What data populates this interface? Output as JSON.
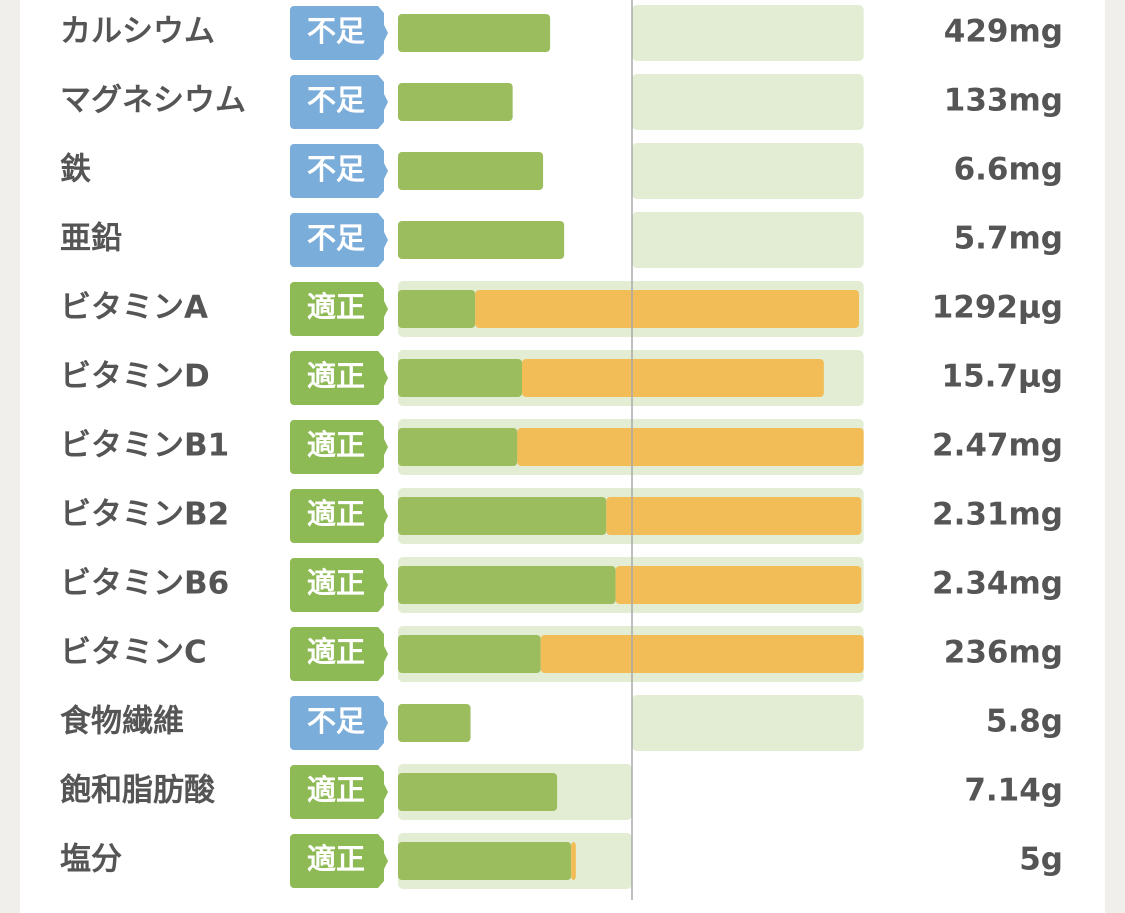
{
  "xlim": [
    0,
    200
  ],
  "reference": 100,
  "colors": {
    "short": "#7badda",
    "ok": "#8dba55",
    "bar": "#9bbd5d",
    "extra": "#f2bd56",
    "range": "#e2edd3"
  },
  "rows": [
    {
      "name": "カルシウム",
      "status": "不足",
      "amount": "429mg",
      "values": [
        65
      ],
      "range": [
        100,
        199
      ]
    },
    {
      "name": "マグネシウム",
      "status": "不足",
      "amount": "133mg",
      "values": [
        49
      ],
      "range": [
        100,
        199
      ]
    },
    {
      "name": "鉄",
      "status": "不足",
      "amount": "6.6mg",
      "values": [
        62
      ],
      "range": [
        100,
        199
      ]
    },
    {
      "name": "亜鉛",
      "status": "不足",
      "amount": "5.7mg",
      "values": [
        71
      ],
      "range": [
        100,
        199
      ]
    },
    {
      "name": "ビタミンA",
      "status": "適正",
      "amount": "1292µg",
      "values": [
        33,
        164
      ],
      "range": [
        0,
        199
      ]
    },
    {
      "name": "ビタミンD",
      "status": "適正",
      "amount": "15.7µg",
      "values": [
        53,
        129
      ],
      "range": [
        0,
        199
      ]
    },
    {
      "name": "ビタミンB1",
      "status": "適正",
      "amount": "2.47mg",
      "values": [
        51,
        148
      ],
      "range": [
        0,
        199
      ]
    },
    {
      "name": "ビタミンB2",
      "status": "適正",
      "amount": "2.31mg",
      "values": [
        89,
        109
      ],
      "range": [
        0,
        199
      ]
    },
    {
      "name": "ビタミンB6",
      "status": "適正",
      "amount": "2.34mg",
      "values": [
        93,
        105
      ],
      "range": [
        0,
        199
      ]
    },
    {
      "name": "ビタミンC",
      "status": "適正",
      "amount": "236mg",
      "values": [
        61,
        138
      ],
      "range": [
        0,
        199
      ]
    },
    {
      "name": "食物繊維",
      "status": "不足",
      "amount": "5.8g",
      "values": [
        31
      ],
      "range": [
        100,
        199
      ]
    },
    {
      "name": "飽和脂肪酸",
      "status": "適正",
      "amount": "7.14g",
      "values": [
        68
      ],
      "range": [
        0,
        100
      ]
    },
    {
      "name": "塩分",
      "status": "適正",
      "amount": "5g",
      "values": [
        74,
        2
      ],
      "range": [
        0,
        100
      ]
    }
  ]
}
